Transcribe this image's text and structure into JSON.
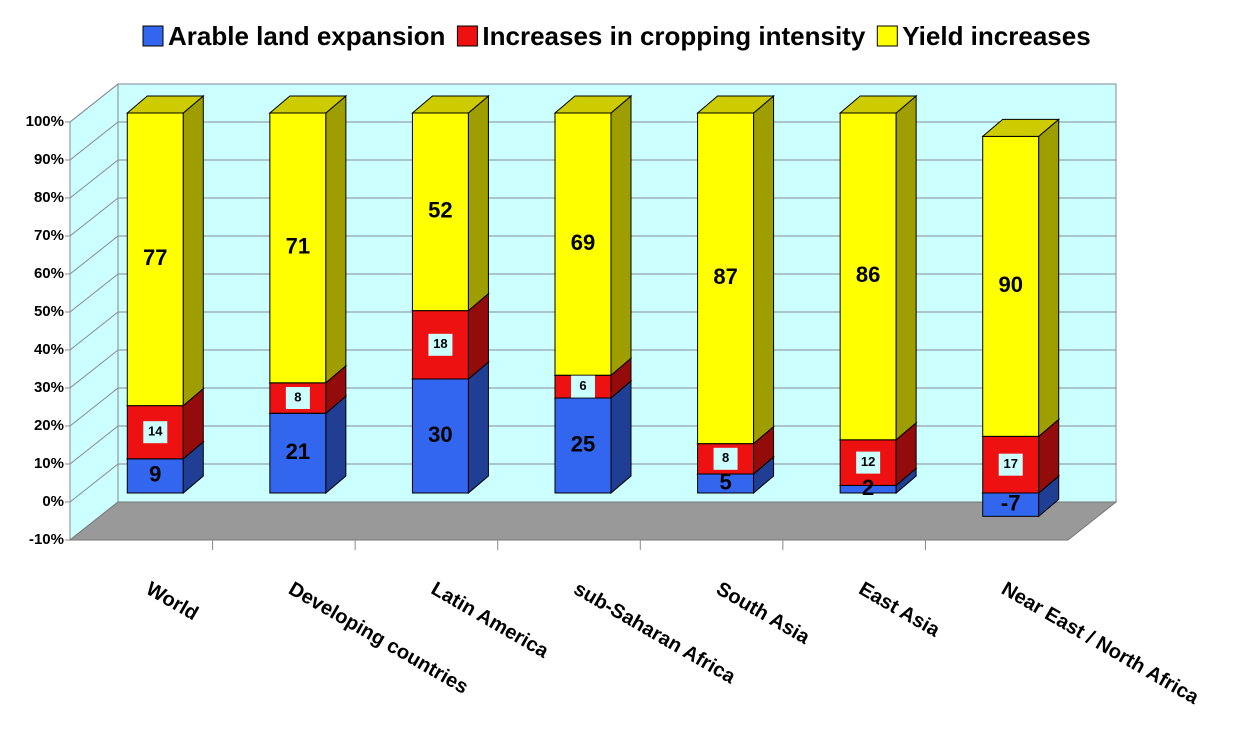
{
  "chart_data": {
    "type": "bar3d",
    "stacking": "percent",
    "categories": [
      "World",
      "Developing countries",
      "Latin America",
      "sub-Saharan Africa",
      "South Asia",
      "East Asia",
      "Near East / North Africa"
    ],
    "series": [
      {
        "name": "Arable land expansion",
        "color": "#3366ee",
        "values": [
          9,
          21,
          30,
          25,
          5,
          2,
          -7
        ]
      },
      {
        "name": "Increases in cropping intensity",
        "color": "#ee1111",
        "values": [
          14,
          8,
          18,
          6,
          8,
          12,
          17
        ]
      },
      {
        "name": "Yield increases",
        "color": "#ffff00",
        "values": [
          77,
          71,
          52,
          69,
          87,
          86,
          90
        ]
      }
    ],
    "ylim": [
      -10,
      100
    ],
    "yticks": [
      {
        "value": -10,
        "label": "-10%"
      },
      {
        "value": 0,
        "label": "0%"
      },
      {
        "value": 10,
        "label": "10%"
      },
      {
        "value": 20,
        "label": "20%"
      },
      {
        "value": 30,
        "label": "30%"
      },
      {
        "value": 40,
        "label": "40%"
      },
      {
        "value": 50,
        "label": "50%"
      },
      {
        "value": 60,
        "label": "60%"
      },
      {
        "value": 70,
        "label": "70%"
      },
      {
        "value": 80,
        "label": "80%"
      },
      {
        "value": 90,
        "label": "90%"
      },
      {
        "value": 100,
        "label": "100%"
      }
    ],
    "grid": true,
    "legend": "top"
  }
}
